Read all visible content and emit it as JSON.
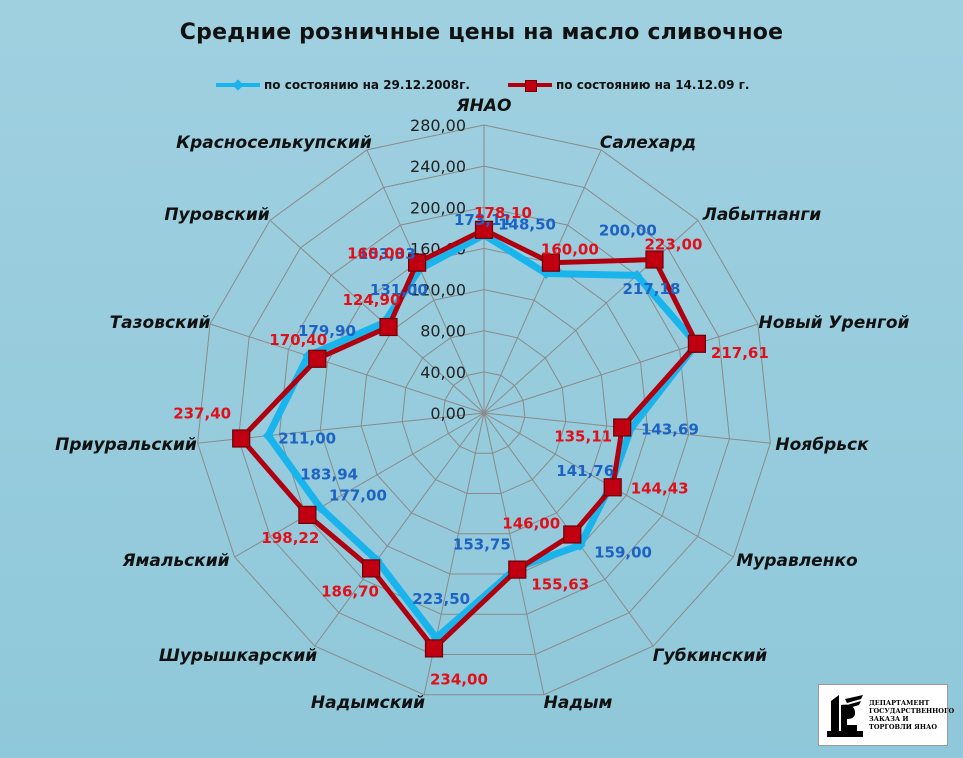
{
  "chart_data": {
    "type": "radar",
    "title": "Средние розничные цены на масло сливочное",
    "axis_ticks": [
      "0,00",
      "40,00",
      "80,00",
      "120,00",
      "160,00",
      "200,00",
      "240,00",
      "280,00"
    ],
    "r_range": [
      0,
      280
    ],
    "categories": [
      "ЯНАО",
      "Салехард",
      "Лабытнанги",
      "Новый Уренгой",
      "Ноябрьск",
      "Муравленко",
      "Губкинский",
      "Надым",
      "Надымский",
      "Шурышкарский",
      "Ямальский",
      "Приуральский",
      "Тазовский",
      "Пуровский",
      "Красноселькупский"
    ],
    "series": [
      {
        "name": "по состоянию на 29.12.2008г.",
        "color": "#1ab4ec",
        "values": [
          173.11,
          148.5,
          200.0,
          217.18,
          143.69,
          141.76,
          159.0,
          153.75,
          223.5,
          177.0,
          183.94,
          211.0,
          179.9,
          131.0,
          153.33
        ],
        "labels": [
          "173,11",
          "148,50",
          "200,00",
          "217,18",
          "143,69",
          "141,76",
          "159,00",
          "153,75",
          "223,50",
          "177,00",
          "183,94",
          "211,00",
          "179,90",
          "131,00",
          "153,33"
        ]
      },
      {
        "name": "по состоянию на 14.12.09 г.",
        "color": "#b00010",
        "values": [
          178.1,
          160.0,
          223.0,
          217.61,
          135.11,
          144.43,
          146.0,
          155.63,
          234.0,
          186.7,
          198.22,
          237.4,
          170.4,
          124.9,
          160.0
        ],
        "labels": [
          "178,10",
          "160,00",
          "223,00",
          "217,61",
          "135,11",
          "144,43",
          "146,00",
          "155,63",
          "234,00",
          "186,70",
          "198,22",
          "237,40",
          "170,40",
          "124,90",
          "160,00"
        ]
      }
    ],
    "grid": true,
    "legend_position": "top"
  },
  "logo": {
    "text": "Департамент государственного заказа и торговли ЯНАО"
  }
}
